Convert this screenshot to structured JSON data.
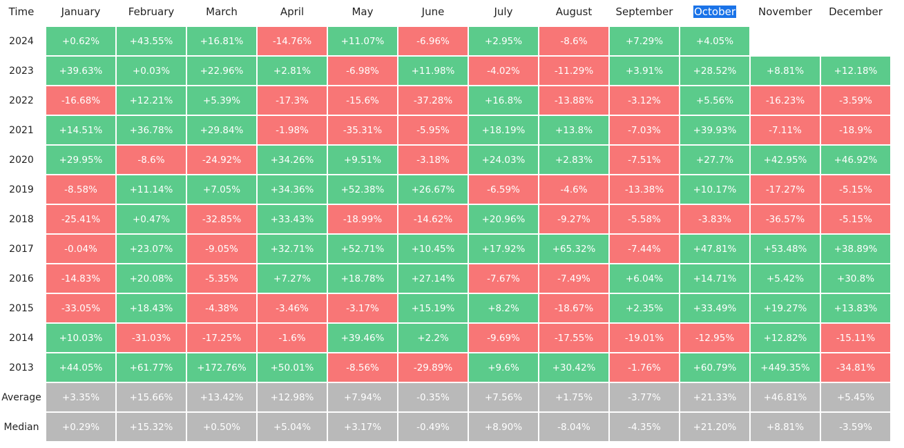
{
  "table": {
    "header": [
      "Time",
      "January",
      "February",
      "March",
      "April",
      "May",
      "June",
      "July",
      "August",
      "September",
      "October",
      "November",
      "December"
    ],
    "selected_header": 10,
    "colors": {
      "positive": "#5bcb8b",
      "negative": "#f87676",
      "summary": "#b9b9b9"
    },
    "rows": [
      [
        "2024",
        "+0.62%",
        "+43.55%",
        "+16.81%",
        "-14.76%",
        "+11.07%",
        "-6.96%",
        "+2.95%",
        "-8.6%",
        "+7.29%",
        "+4.05%"
      ],
      [
        "2023",
        "+39.63%",
        "+0.03%",
        "+22.96%",
        "+2.81%",
        "-6.98%",
        "+11.98%",
        "-4.02%",
        "-11.29%",
        "+3.91%",
        "+28.52%",
        "+8.81%",
        "+12.18%"
      ],
      [
        "2022",
        "-16.68%",
        "+12.21%",
        "+5.39%",
        "-17.3%",
        "-15.6%",
        "-37.28%",
        "+16.8%",
        "-13.88%",
        "-3.12%",
        "+5.56%",
        "-16.23%",
        "-3.59%"
      ],
      [
        "2021",
        "+14.51%",
        "+36.78%",
        "+29.84%",
        "-1.98%",
        "-35.31%",
        "-5.95%",
        "+18.19%",
        "+13.8%",
        "-7.03%",
        "+39.93%",
        "-7.11%",
        "-18.9%"
      ],
      [
        "2020",
        "+29.95%",
        "-8.6%",
        "-24.92%",
        "+34.26%",
        "+9.51%",
        "-3.18%",
        "+24.03%",
        "+2.83%",
        "-7.51%",
        "+27.7%",
        "+42.95%",
        "+46.92%"
      ],
      [
        "2019",
        "-8.58%",
        "+11.14%",
        "+7.05%",
        "+34.36%",
        "+52.38%",
        "+26.67%",
        "-6.59%",
        "-4.6%",
        "-13.38%",
        "+10.17%",
        "-17.27%",
        "-5.15%"
      ],
      [
        "2018",
        "-25.41%",
        "+0.47%",
        "-32.85%",
        "+33.43%",
        "-18.99%",
        "-14.62%",
        "+20.96%",
        "-9.27%",
        "-5.58%",
        "-3.83%",
        "-36.57%",
        "-5.15%"
      ],
      [
        "2017",
        "-0.04%",
        "+23.07%",
        "-9.05%",
        "+32.71%",
        "+52.71%",
        "+10.45%",
        "+17.92%",
        "+65.32%",
        "-7.44%",
        "+47.81%",
        "+53.48%",
        "+38.89%"
      ],
      [
        "2016",
        "-14.83%",
        "+20.08%",
        "-5.35%",
        "+7.27%",
        "+18.78%",
        "+27.14%",
        "-7.67%",
        "-7.49%",
        "+6.04%",
        "+14.71%",
        "+5.42%",
        "+30.8%"
      ],
      [
        "2015",
        "-33.05%",
        "+18.43%",
        "-4.38%",
        "-3.46%",
        "-3.17%",
        "+15.19%",
        "+8.2%",
        "-18.67%",
        "+2.35%",
        "+33.49%",
        "+19.27%",
        "+13.83%"
      ],
      [
        "2014",
        "+10.03%",
        "-31.03%",
        "-17.25%",
        "-1.6%",
        "+39.46%",
        "+2.2%",
        "-9.69%",
        "-17.55%",
        "-19.01%",
        "-12.95%",
        "+12.82%",
        "-15.11%"
      ],
      [
        "2013",
        "+44.05%",
        "+61.77%",
        "+172.76%",
        "+50.01%",
        "-8.56%",
        "-29.89%",
        "+9.6%",
        "+30.42%",
        "-1.76%",
        "+60.79%",
        "+449.35%",
        "-34.81%"
      ]
    ],
    "summary_rows": [
      [
        "Average",
        "+3.35%",
        "+15.66%",
        "+13.42%",
        "+12.98%",
        "+7.94%",
        "-0.35%",
        "+7.56%",
        "+1.75%",
        "-3.77%",
        "+21.33%",
        "+46.81%",
        "+5.45%"
      ],
      [
        "Median",
        "+0.29%",
        "+15.32%",
        "+0.50%",
        "+5.04%",
        "+3.17%",
        "-0.49%",
        "+8.90%",
        "-8.04%",
        "-4.35%",
        "+21.20%",
        "+8.81%",
        "-3.59%"
      ]
    ]
  }
}
